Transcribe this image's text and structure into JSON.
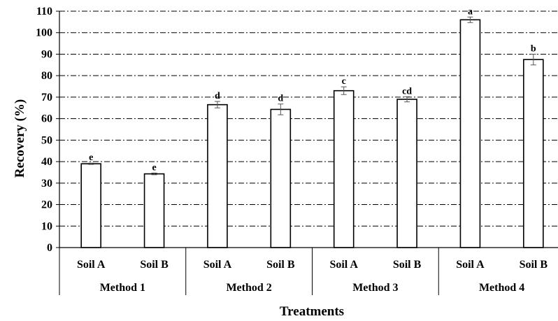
{
  "chart_data": {
    "type": "bar",
    "xlabel": "Treatments",
    "ylabel": "Recovery (%)",
    "ylim": [
      0,
      110
    ],
    "yticks": [
      0,
      10,
      20,
      30,
      40,
      50,
      60,
      70,
      80,
      90,
      100,
      110
    ],
    "grid": true,
    "groups": [
      "Method 1",
      "Method 2",
      "Method 3",
      "Method 4"
    ],
    "categories": [
      "Soil A",
      "Soil B",
      "Soil A",
      "Soil B",
      "Soil A",
      "Soil B",
      "Soil A",
      "Soil B"
    ],
    "category_group": [
      0,
      0,
      1,
      1,
      2,
      2,
      3,
      3
    ],
    "values": [
      39,
      34.3,
      66.5,
      64.3,
      73,
      69,
      106,
      87.5
    ],
    "errors": [
      0.3,
      0.4,
      1.5,
      2.5,
      1.8,
      1.2,
      1.3,
      2.5
    ],
    "labels": [
      "e",
      "e",
      "d",
      "d",
      "c",
      "cd",
      "a",
      "b"
    ],
    "colors": {
      "bar_fill": "#ffffff",
      "bar_stroke": "#000000",
      "grid": "#000000",
      "error": "#555555"
    }
  }
}
